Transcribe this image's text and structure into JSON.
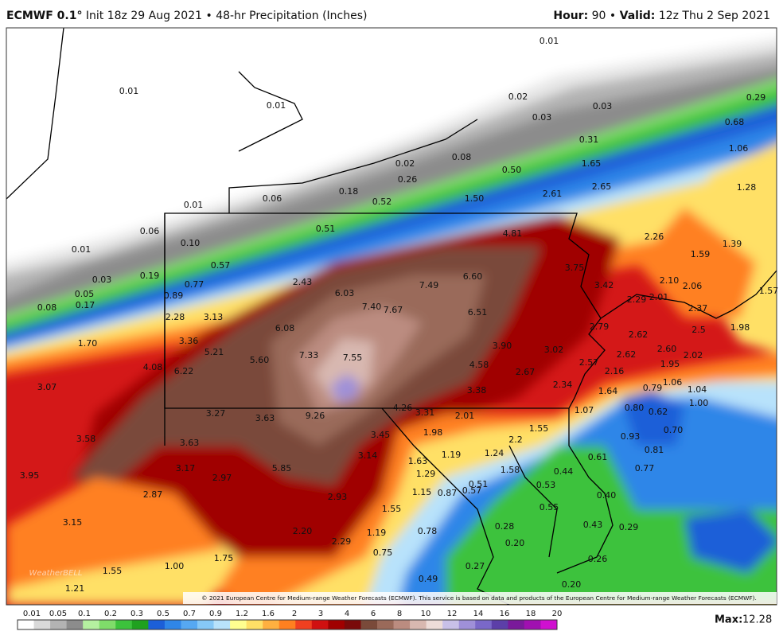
{
  "header": {
    "model": "ECMWF 0.1°",
    "info": "Init 18z 29 Aug 2021 • 48-hr Precipitation (Inches)",
    "hour_label": "Hour:",
    "hour": "90 •",
    "valid_label": "Valid:",
    "valid": "12z Thu 2 Sep 2021"
  },
  "map": {
    "labels": [
      "0.01",
      "0.01",
      "0.01",
      "0.02",
      "0.03",
      "0.03",
      "0.29",
      "0.68",
      "0.31",
      "1.06",
      "1.65",
      "0.02",
      "0.26",
      "0.08",
      "0.50",
      "1.28",
      "2.65",
      "2.61",
      "1.50",
      "0.18",
      "0.52",
      "0.06",
      "0.01",
      "0.06",
      "0.51",
      "4.81",
      "2.26",
      "1.39",
      "0.10",
      "0.01",
      "1.59",
      "0.57",
      "3.75",
      "0.03",
      "0.19",
      "6.60",
      "2.10",
      "2.06",
      "2.43",
      "0.77",
      "7.49",
      "3.42",
      "1.57",
      "0.05",
      "0.89",
      "6.03",
      "2.29",
      "2.01",
      "2.37",
      "0.17",
      "0.08",
      "7.40",
      "7.67",
      "6.51",
      "2.28",
      "3.13",
      "2.79",
      "2.5",
      "1.98",
      "6.08",
      "2.62",
      "1.70",
      "3.36",
      "3.90",
      "3.02",
      "2.60",
      "5.21",
      "7.33",
      "7.55",
      "2.62",
      "2.02",
      "5.60",
      "2.57",
      "1.95",
      "4.08",
      "6.22",
      "4.58",
      "2.16",
      "2.67",
      "1.06",
      "2.34",
      "1.04",
      "3.07",
      "3.38",
      "1.64",
      "0.79",
      "1.00",
      "4.26",
      "3.31",
      "2.01",
      "1.07",
      "0.80",
      "0.62",
      "3.27",
      "3.63",
      "9.26",
      "1.98",
      "3.45",
      "1.55",
      "2.2",
      "0.70",
      "0.93",
      "3.58",
      "3.63",
      "0.81",
      "1.19",
      "1.24",
      "3.14",
      "1.63",
      "0.61",
      "0.77",
      "3.95",
      "3.17",
      "5.85",
      "1.29",
      "0.44",
      "1.58",
      "2.97",
      "0.51",
      "0.53",
      "0.57",
      "2.87",
      "1.15",
      "0.87",
      "2.93",
      "0.40",
      "0.55",
      "1.55",
      "3.15",
      "0.28",
      "0.43",
      "0.29",
      "2.20",
      "1.19",
      "0.78",
      "0.20",
      "2.29",
      "0.75",
      "1.75",
      "0.26",
      "1.00",
      "0.27",
      "1.55",
      "0.49",
      "0.20",
      "1.21"
    ],
    "credit": "© 2021 European Centre for Medium-range Weather Forecasts (ECMWF). This service is based on data and products of the European Centre for Medium-range Weather Forecasts (ECMWF).",
    "logo": "WeatherBELL"
  },
  "colorbar": {
    "labels": [
      "0.01",
      "0.05",
      "0.1",
      "0.2",
      "0.3",
      "0.5",
      "0.7",
      "0.9",
      "1.2",
      "1.6",
      "2",
      "3",
      "4",
      "6",
      "8",
      "10",
      "12",
      "14",
      "16",
      "18",
      "20"
    ],
    "colors": [
      "#ffffff",
      "#d9d9d9",
      "#b3b3b3",
      "#8c8c8c",
      "#b5f0a0",
      "#7fdc6a",
      "#3cc23c",
      "#1fa11f",
      "#1c5fd8",
      "#2f86e8",
      "#56a8f2",
      "#86c8f7",
      "#b8e2fb",
      "#ffff90",
      "#ffe066",
      "#ffb040",
      "#ff8020",
      "#f04020",
      "#d01010",
      "#a00000",
      "#7a0a0a",
      "#7a4a3a",
      "#9a6a5a",
      "#bb8c80",
      "#d8b8b0",
      "#eddcd8",
      "#c8c0e8",
      "#9f90d8",
      "#7a68c8",
      "#5c3fa8",
      "#7a1a9a",
      "#a010b0",
      "#d010d0"
    ],
    "max_label": "Max:",
    "max": "12.28"
  }
}
